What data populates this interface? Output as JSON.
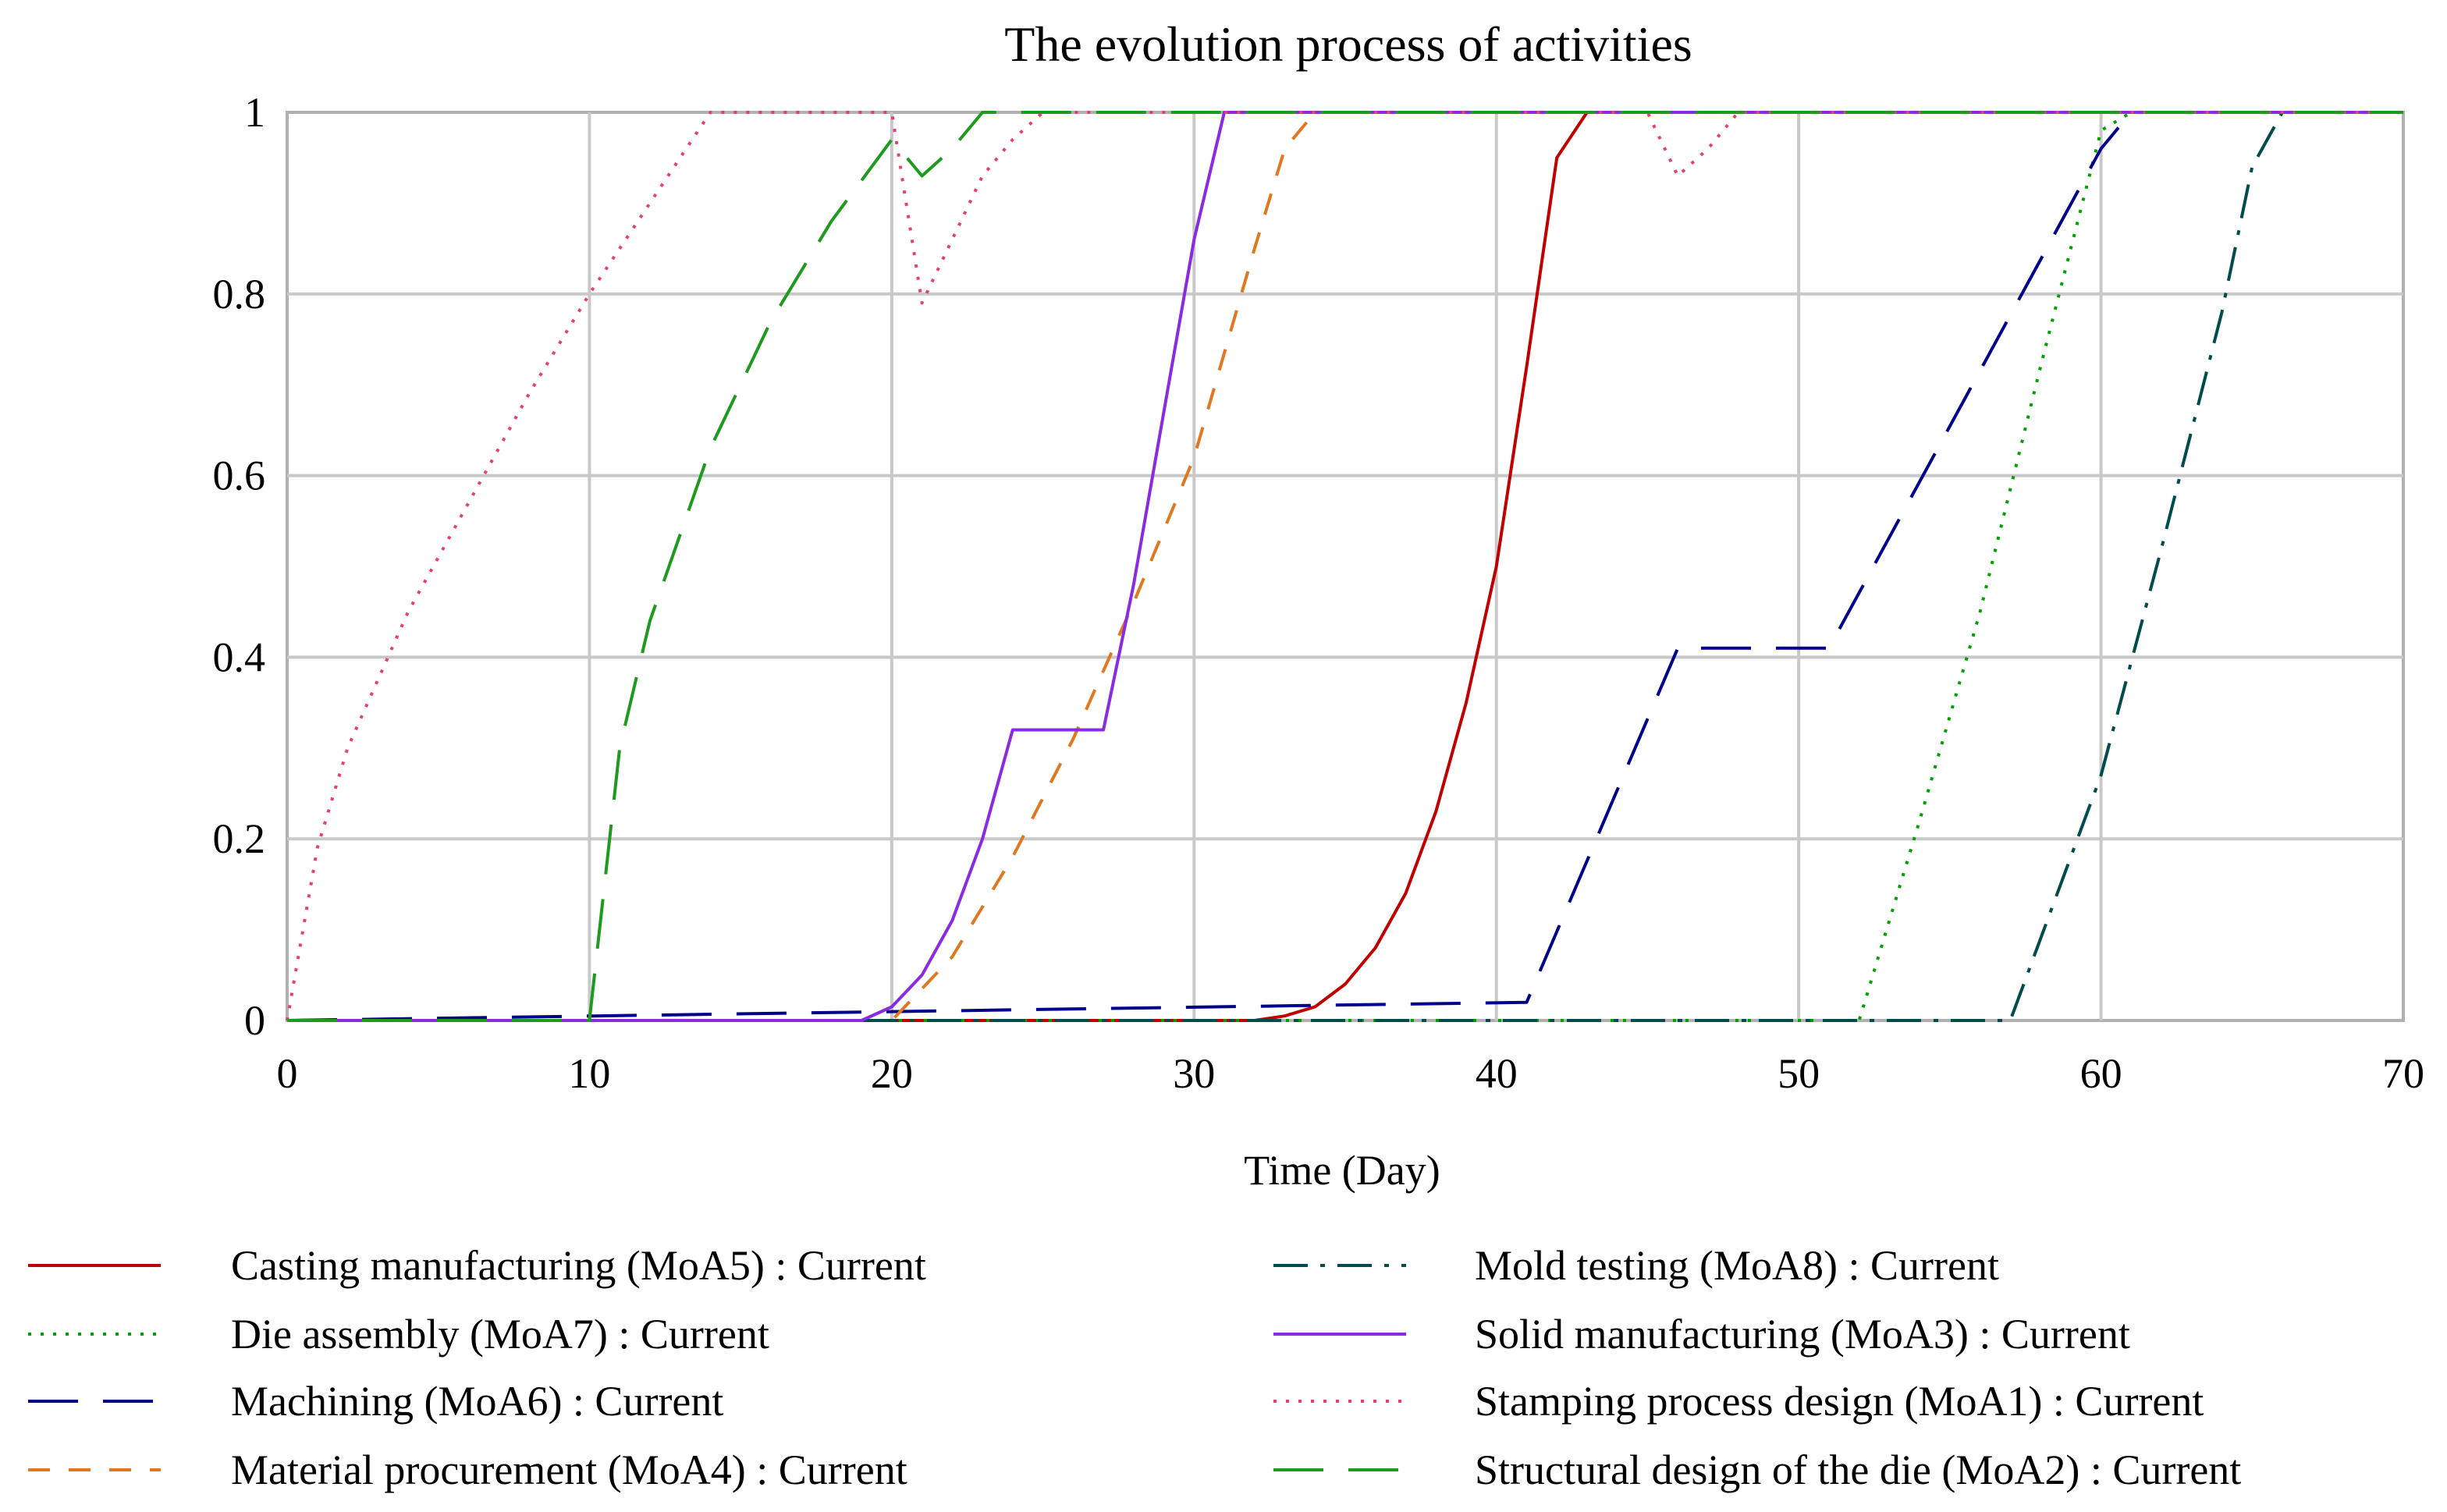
{
  "chart_data": {
    "type": "line",
    "title": "The evolution process of activities",
    "xlabel": "Time (Day)",
    "ylabel": "",
    "xlim": [
      0,
      70
    ],
    "ylim": [
      0,
      1
    ],
    "xticks": [
      0,
      10,
      20,
      30,
      40,
      50,
      60,
      70
    ],
    "yticks": [
      0,
      0.2,
      0.4,
      0.6,
      0.8,
      1
    ],
    "xtick_labels": [
      "0",
      "10",
      "20",
      "30",
      "40",
      "50",
      "60",
      "70"
    ],
    "ytick_labels": [
      "0",
      "0.2",
      "0.4",
      "0.6",
      "0.8",
      "1"
    ],
    "grid": true,
    "legend_position": "bottom",
    "series": [
      {
        "name": "Casting manufacturing (MoA5) : Current",
        "color": "#c00000",
        "style": "solid",
        "x": [
          0,
          32,
          33,
          34,
          35,
          36,
          37,
          38,
          39,
          40,
          41,
          42,
          43,
          70
        ],
        "y": [
          0,
          0,
          0.005,
          0.015,
          0.04,
          0.08,
          0.14,
          0.23,
          0.35,
          0.5,
          0.72,
          0.95,
          1,
          1
        ]
      },
      {
        "name": "Die assembly (MoA7) : Current",
        "color": "#00a000",
        "style": "dotted",
        "x": [
          0,
          52,
          54,
          56,
          58,
          59,
          60,
          61,
          70
        ],
        "y": [
          0,
          0,
          0.22,
          0.45,
          0.72,
          0.85,
          0.98,
          1,
          1
        ]
      },
      {
        "name": "Machining (MoA6) : Current",
        "color": "#00008b",
        "style": "longdash",
        "x": [
          0,
          41,
          46,
          51,
          60,
          61,
          70
        ],
        "y": [
          0,
          0.02,
          0.41,
          0.41,
          0.96,
          1,
          1
        ]
      },
      {
        "name": "Material procurement (MoA4) : Current",
        "color": "#e07820",
        "style": "dash",
        "x": [
          0,
          20,
          22,
          24,
          26,
          28,
          30,
          32,
          33,
          34,
          70
        ],
        "y": [
          0,
          0,
          0.07,
          0.18,
          0.31,
          0.46,
          0.62,
          0.85,
          0.96,
          1,
          1
        ]
      },
      {
        "name": "Mold testing (MoA8) : Current",
        "color": "#004c4c",
        "style": "dashdot",
        "x": [
          0,
          57,
          58,
          60,
          62,
          64,
          65,
          66,
          70
        ],
        "y": [
          0,
          0,
          0.09,
          0.27,
          0.52,
          0.78,
          0.94,
          1,
          1
        ]
      },
      {
        "name": "Solid manufacturing (MoA3) : Current",
        "color": "#8a2be2",
        "style": "solid",
        "x": [
          0,
          19,
          20,
          21,
          22,
          23,
          24,
          27,
          28,
          29,
          30,
          31,
          70
        ],
        "y": [
          0,
          0,
          0.015,
          0.05,
          0.11,
          0.2,
          0.32,
          0.32,
          0.48,
          0.67,
          0.86,
          1,
          1
        ]
      },
      {
        "name": "Stamping process design (MoA1) : Current",
        "color": "#e8406e",
        "style": "dotted",
        "x": [
          0,
          1,
          2,
          4,
          6,
          8,
          10,
          12,
          14,
          20,
          21,
          22,
          23,
          24,
          25,
          45,
          46,
          47,
          48,
          70
        ],
        "y": [
          0,
          0.19,
          0.3,
          0.45,
          0.57,
          0.69,
          0.8,
          0.9,
          1,
          1,
          0.79,
          0.86,
          0.93,
          0.97,
          1,
          1,
          0.93,
          0.96,
          1,
          1
        ]
      },
      {
        "name": "Structural design of the die (MoA2) : Current",
        "color": "#1e9a1e",
        "style": "longdash",
        "x": [
          0,
          10,
          11,
          12,
          14,
          16,
          18,
          20,
          21,
          22,
          23,
          25,
          70
        ],
        "y": [
          0,
          0,
          0.3,
          0.44,
          0.63,
          0.77,
          0.88,
          0.97,
          0.93,
          0.96,
          1,
          1,
          1
        ]
      }
    ]
  }
}
